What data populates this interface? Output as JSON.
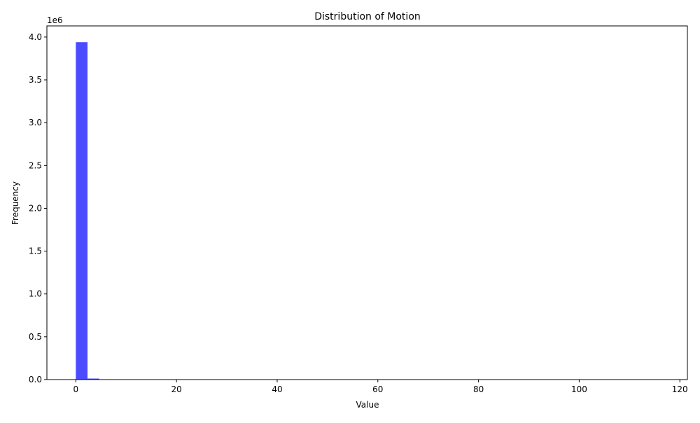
{
  "chart_data": {
    "type": "bar",
    "title": "Distribution of Motion",
    "xlabel": "Value",
    "ylabel": "Frequency",
    "y_offset_label": "1e6",
    "xlim": [
      -5.75,
      121.5
    ],
    "ylim": [
      0,
      4130000
    ],
    "x_ticks": [
      0,
      20,
      40,
      60,
      80,
      100,
      120
    ],
    "x_tick_labels": [
      "0",
      "20",
      "40",
      "60",
      "80",
      "100",
      "120"
    ],
    "y_ticks": [
      0,
      500000,
      1000000,
      1500000,
      2000000,
      2500000,
      3000000,
      3500000,
      4000000
    ],
    "y_tick_labels": [
      "0.0",
      "0.5",
      "1.0",
      "1.5",
      "2.0",
      "2.5",
      "3.0",
      "3.5",
      "4.0"
    ],
    "bins": [
      {
        "x0": 0.0,
        "x1": 2.32,
        "count": 3940000
      },
      {
        "x0": 2.32,
        "x1": 4.64,
        "count": 12000
      },
      {
        "x0": 4.64,
        "x1": 6.96,
        "count": 3000
      }
    ],
    "bar_color": "#4b4bff",
    "grid": false,
    "legend": false
  }
}
